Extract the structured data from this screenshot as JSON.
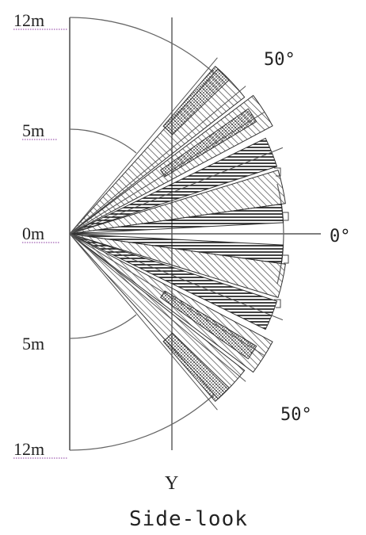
{
  "diagram": {
    "labels": {
      "top_12m": "12m",
      "top_5m": "5m",
      "zero": "0m",
      "bottom_5m": "5m",
      "bottom_12m": "12m",
      "angle_top": "50°",
      "angle_mid": "0°",
      "angle_bottom": "50°",
      "axis_y": "Y",
      "caption": "Side-look"
    },
    "beam": {
      "max_angle_deg": 50,
      "fan_colors": {
        "line": "#333333",
        "hatch": "#555555"
      }
    }
  }
}
